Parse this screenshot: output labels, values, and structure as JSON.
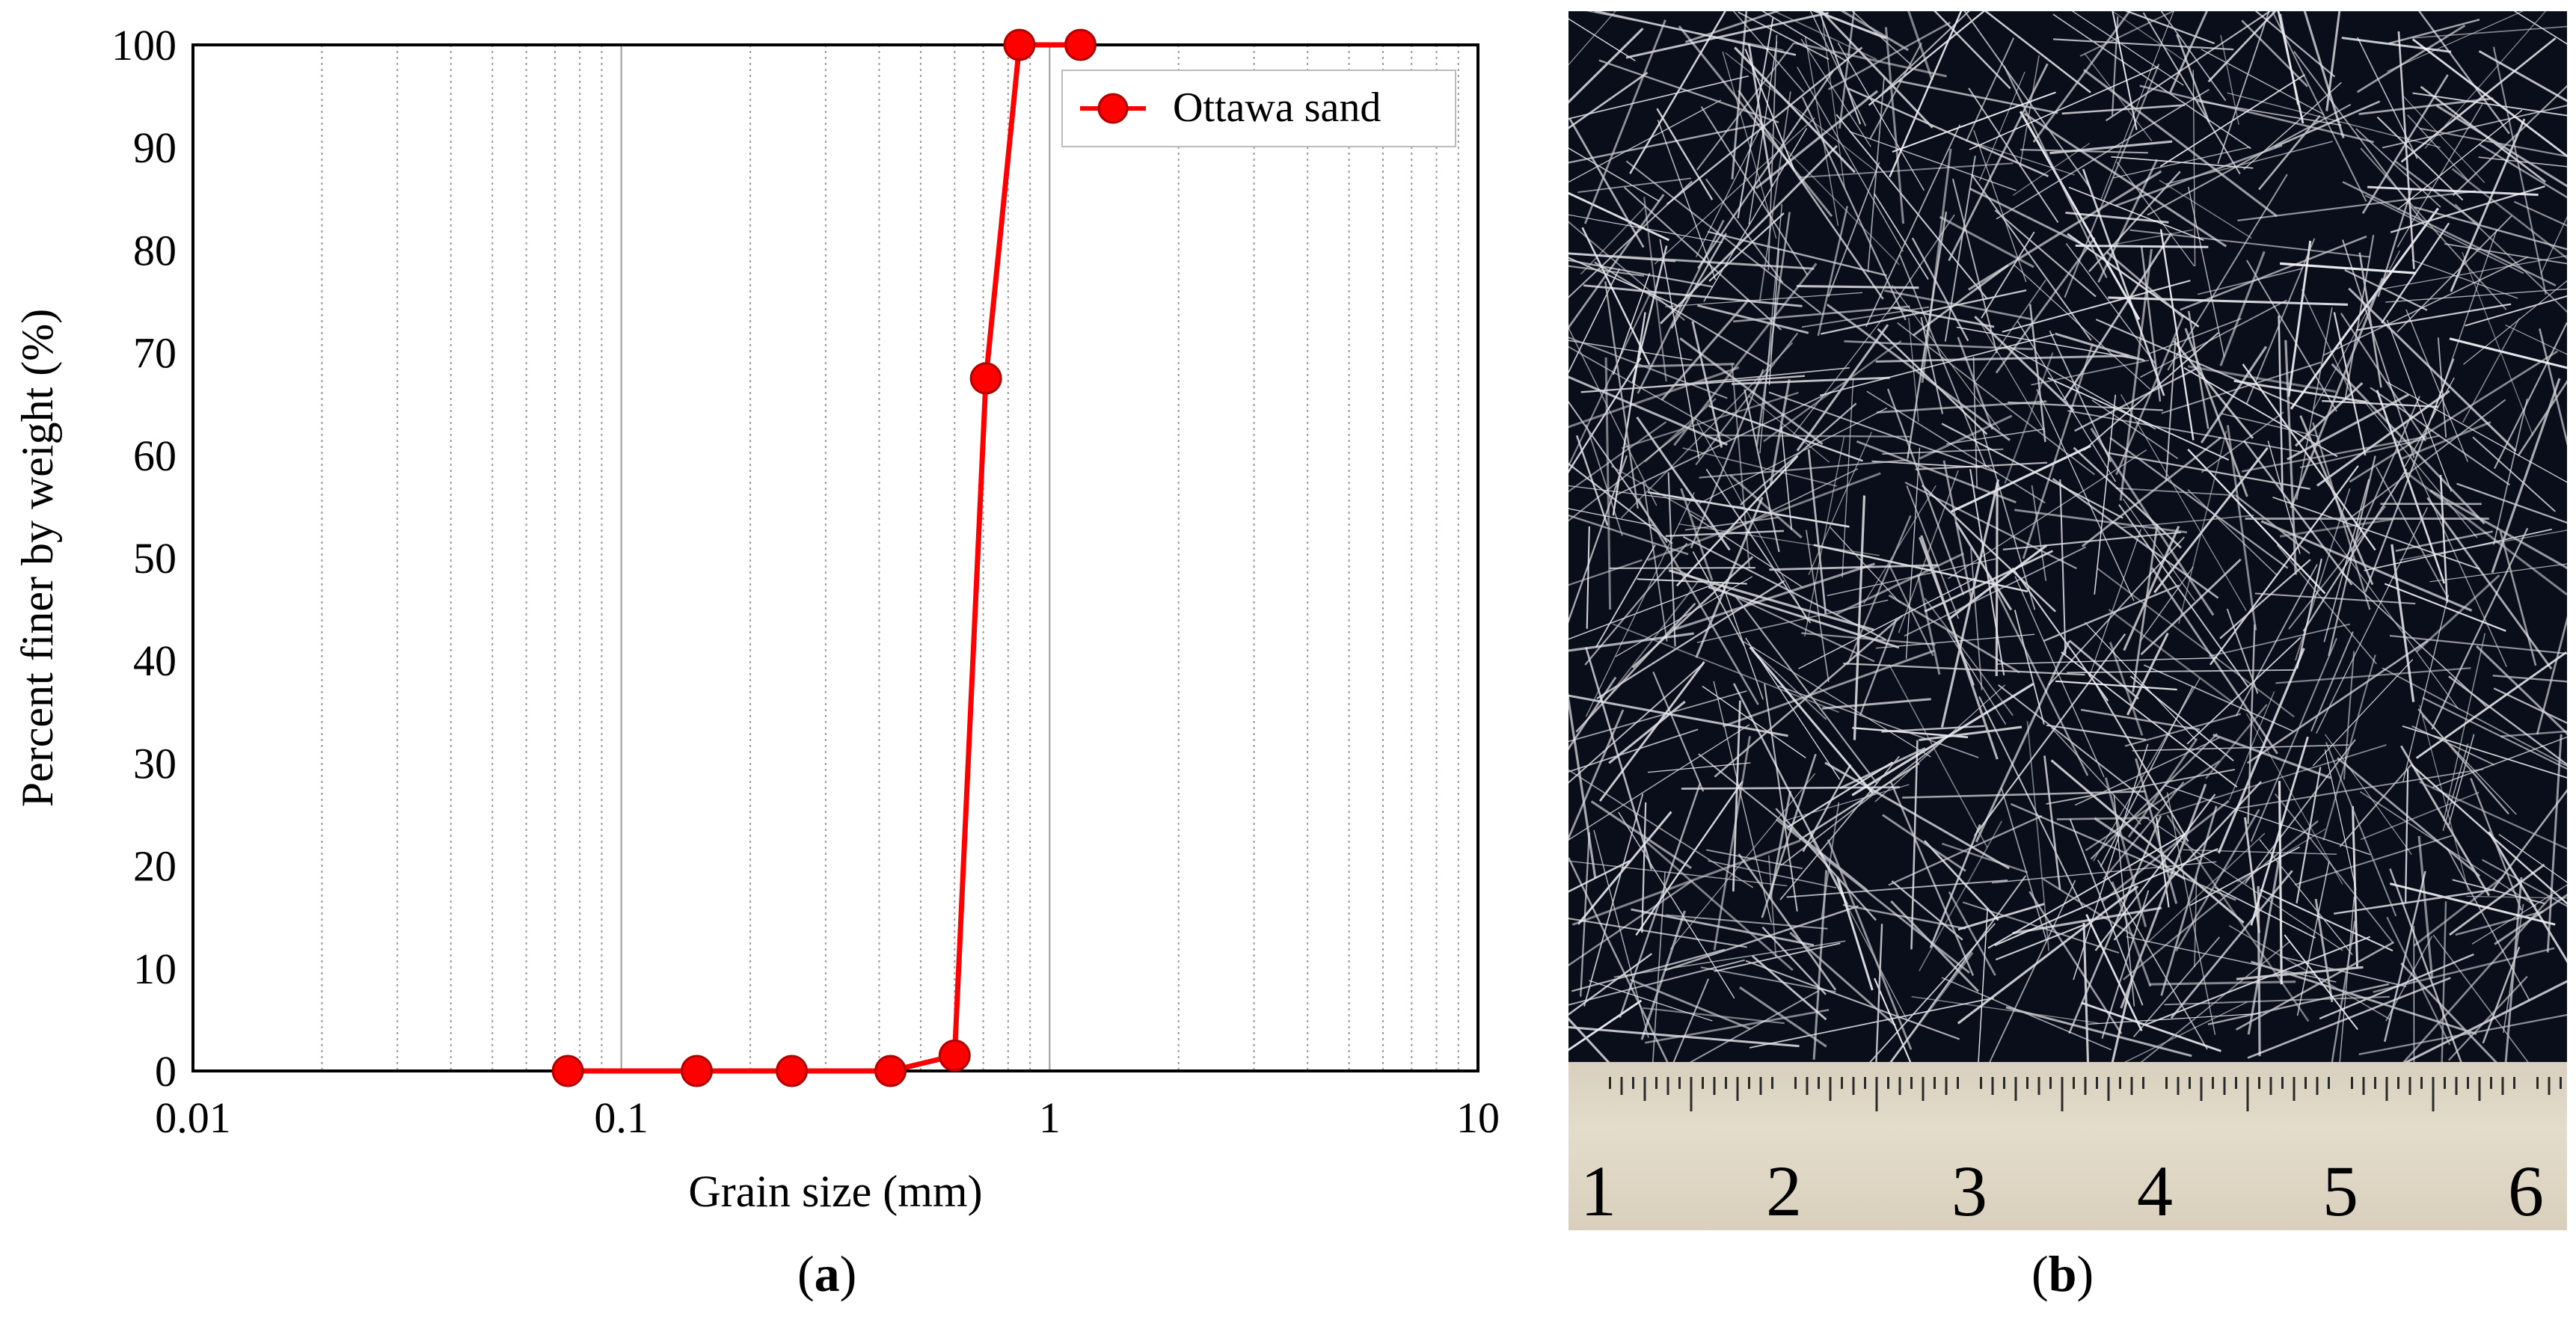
{
  "chart_data": {
    "type": "line",
    "xscale": "log",
    "xlabel": "Grain size (mm)",
    "ylabel": "Percent finer by weight (%)",
    "xlim": [
      0.01,
      10
    ],
    "ylim": [
      0,
      100
    ],
    "x_ticks": [
      "0.01",
      "0.1",
      "1",
      "10"
    ],
    "y_ticks": [
      "0",
      "10",
      "20",
      "30",
      "40",
      "50",
      "60",
      "70",
      "80",
      "90",
      "100"
    ],
    "grid": "vertical minor dotted, major solid",
    "legend_position": "top-right",
    "series": [
      {
        "name": "Ottawa sand",
        "color": "#ff0000",
        "marker": "circle",
        "x": [
          0.075,
          0.15,
          0.25,
          0.425,
          0.6,
          0.71,
          0.85,
          1.18
        ],
        "y": [
          0,
          0,
          0,
          0,
          1.5,
          67.5,
          100,
          100
        ]
      }
    ]
  },
  "panels": {
    "a_label_open": "(",
    "a_label_letter": "a",
    "a_label_close": ")",
    "b_label_open": "(",
    "b_label_letter": "b",
    "b_label_close": ")"
  },
  "ruler": {
    "numbers": [
      "1",
      "2",
      "3",
      "4",
      "5",
      "6"
    ]
  }
}
